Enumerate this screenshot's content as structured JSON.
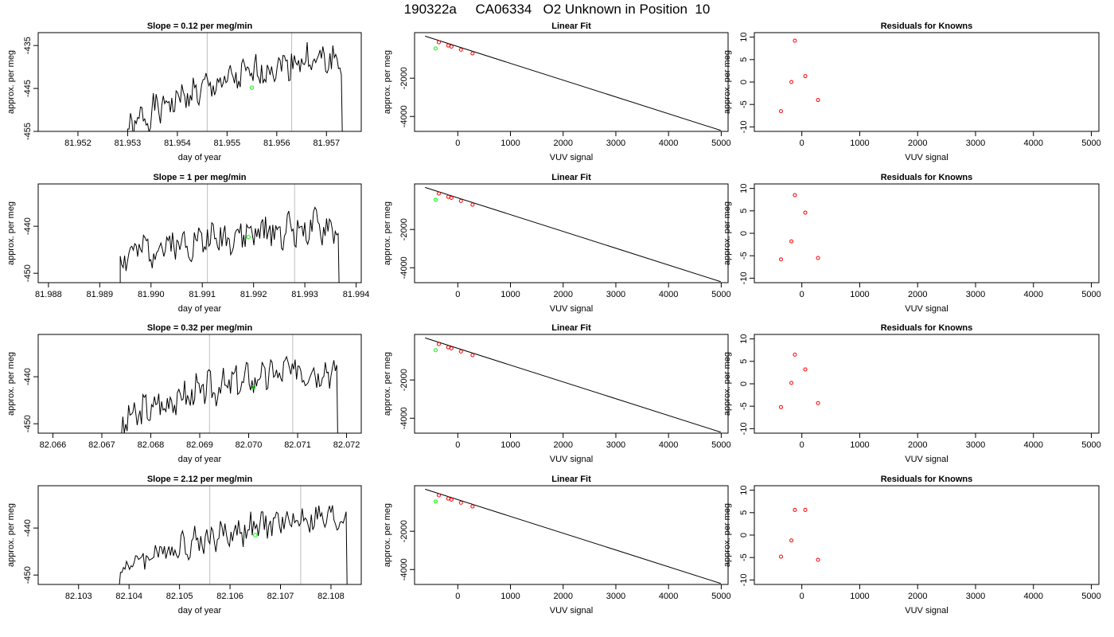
{
  "title": "190322a     CA06334   O2 Unknown in Position  10",
  "chart_data": [
    {
      "type": "line",
      "panel": "time",
      "title": "Slope =  0.12  per meg/min",
      "xlabel": "day of year",
      "ylabel": "approx. per meg",
      "xlim": [
        81.9512,
        81.9577
      ],
      "ylim": [
        -455,
        -432
      ],
      "xticks": [
        {
          "v": 81.952,
          "label": "81.952"
        },
        {
          "v": 81.953,
          "label": "81.953"
        },
        {
          "v": 81.954,
          "label": "81.954"
        },
        {
          "v": 81.955,
          "label": "81.955"
        },
        {
          "v": 81.956,
          "label": "81.956"
        },
        {
          "v": 81.957,
          "label": "81.957"
        }
      ],
      "yticks": [
        {
          "v": -435,
          "label": "-435"
        },
        {
          "v": -445,
          "label": "-445"
        },
        {
          "v": -455,
          "label": "-455"
        }
      ],
      "vlines": [
        81.9546,
        81.9563
      ],
      "highlight_point": {
        "x": 81.9555,
        "y": -444.8
      },
      "trace": {
        "x_start": 81.953,
        "x_end": 81.9573,
        "y_start": -456,
        "y_end": -438.5,
        "wiggle": 3,
        "seed": 1
      }
    },
    {
      "type": "scatter",
      "panel": "fit",
      "title": "Linear Fit",
      "xlabel": "VUV signal",
      "ylabel": "approx. per meg",
      "xlim": [
        -820,
        5130
      ],
      "ylim": [
        -4780,
        380
      ],
      "xticks": [
        {
          "v": 0,
          "label": "0"
        },
        {
          "v": 1000,
          "label": "1000"
        },
        {
          "v": 2000,
          "label": "2000"
        },
        {
          "v": 3000,
          "label": "3000"
        },
        {
          "v": 4000,
          "label": "4000"
        },
        {
          "v": 5000,
          "label": "5000"
        }
      ],
      "yticks": [
        {
          "v": -2000,
          "label": "-2000"
        },
        {
          "v": -4000,
          "label": "-4000"
        }
      ],
      "fit_line": {
        "x": [
          -620,
          4990
        ],
        "y": [
          197,
          -4727
        ]
      },
      "knowns": {
        "x": [
          -360,
          -180,
          -120,
          60,
          280
        ],
        "y": [
          -126,
          -293,
          -346,
          -509,
          -704
        ]
      },
      "unknown": {
        "x": -420,
        "y": -445
      }
    },
    {
      "type": "scatter",
      "panel": "resid",
      "title": "Residuals for Knowns",
      "xlabel": "VUV signal",
      "ylabel": "approx. per meg",
      "xlim": [
        -820,
        5130
      ],
      "ylim": [
        -11,
        11
      ],
      "xticks": [
        {
          "v": 0,
          "label": "0"
        },
        {
          "v": 1000,
          "label": "1000"
        },
        {
          "v": 2000,
          "label": "2000"
        },
        {
          "v": 3000,
          "label": "3000"
        },
        {
          "v": 4000,
          "label": "4000"
        },
        {
          "v": 5000,
          "label": "5000"
        }
      ],
      "yticks": [
        {
          "v": -10,
          "label": "-10"
        },
        {
          "v": -5,
          "label": "-5"
        },
        {
          "v": 0,
          "label": "0"
        },
        {
          "v": 5,
          "label": "5"
        },
        {
          "v": 10,
          "label": "10"
        }
      ],
      "points": {
        "x": [
          -360,
          -180,
          -120,
          60,
          280
        ],
        "y": [
          -6.5,
          0,
          9.2,
          1.3,
          -4
        ]
      }
    },
    {
      "type": "line",
      "panel": "time",
      "title": "Slope =  1  per meg/min",
      "xlabel": "day of year",
      "ylabel": "approx. per meg",
      "xlim": [
        81.9878,
        81.9941
      ],
      "ylim": [
        -452,
        -431
      ],
      "xticks": [
        {
          "v": 81.988,
          "label": "81.988"
        },
        {
          "v": 81.989,
          "label": "81.989"
        },
        {
          "v": 81.99,
          "label": "81.990"
        },
        {
          "v": 81.991,
          "label": "81.991"
        },
        {
          "v": 81.992,
          "label": "81.992"
        },
        {
          "v": 81.993,
          "label": "81.993"
        },
        {
          "v": 81.994,
          "label": "81.994"
        }
      ],
      "yticks": [
        {
          "v": -440,
          "label": "-440"
        },
        {
          "v": -450,
          "label": "-450"
        }
      ],
      "vlines": [
        81.9911,
        81.9928
      ],
      "highlight_point": {
        "x": 81.9919,
        "y": -442.3
      },
      "trace": {
        "x_start": 81.9894,
        "x_end": 81.99365,
        "y_start": -447,
        "y_end": -440.5,
        "wiggle": 3,
        "seed": 2
      }
    },
    {
      "type": "scatter",
      "panel": "fit",
      "title": "Linear Fit",
      "xlabel": "VUV signal",
      "ylabel": "approx. per meg",
      "xlim": [
        -820,
        5130
      ],
      "ylim": [
        -4780,
        380
      ],
      "xticks": [
        {
          "v": 0,
          "label": "0"
        },
        {
          "v": 1000,
          "label": "1000"
        },
        {
          "v": 2000,
          "label": "2000"
        },
        {
          "v": 3000,
          "label": "3000"
        },
        {
          "v": 4000,
          "label": "4000"
        },
        {
          "v": 5000,
          "label": "5000"
        }
      ],
      "yticks": [
        {
          "v": -2000,
          "label": "-2000"
        },
        {
          "v": -4000,
          "label": "-4000"
        }
      ],
      "fit_line": {
        "x": [
          -620,
          4990
        ],
        "y": [
          197,
          -4727
        ]
      },
      "knowns": {
        "x": [
          -360,
          -180,
          -120,
          60,
          280
        ],
        "y": [
          -126,
          -293,
          -346,
          -509,
          -704
        ]
      },
      "unknown": {
        "x": -420,
        "y": -445
      }
    },
    {
      "type": "scatter",
      "panel": "resid",
      "title": "Residuals for Knowns",
      "xlabel": "VUV signal",
      "ylabel": "approx. per meg",
      "xlim": [
        -820,
        5130
      ],
      "ylim": [
        -11,
        11
      ],
      "xticks": [
        {
          "v": 0,
          "label": "0"
        },
        {
          "v": 1000,
          "label": "1000"
        },
        {
          "v": 2000,
          "label": "2000"
        },
        {
          "v": 3000,
          "label": "3000"
        },
        {
          "v": 4000,
          "label": "4000"
        },
        {
          "v": 5000,
          "label": "5000"
        }
      ],
      "yticks": [
        {
          "v": -10,
          "label": "-10"
        },
        {
          "v": -5,
          "label": "-5"
        },
        {
          "v": 0,
          "label": "0"
        },
        {
          "v": 5,
          "label": "5"
        },
        {
          "v": 10,
          "label": "10"
        }
      ],
      "points": {
        "x": [
          -360,
          -180,
          -120,
          60,
          280
        ],
        "y": [
          -5.8,
          -1.8,
          8.5,
          4.6,
          -5.5
        ]
      }
    },
    {
      "type": "line",
      "panel": "time",
      "title": "Slope =  0.32  per meg/min",
      "xlabel": "day of year",
      "ylabel": "approx. per meg",
      "xlim": [
        82.0657,
        82.0723
      ],
      "ylim": [
        -452,
        -431
      ],
      "xticks": [
        {
          "v": 82.066,
          "label": "82.066"
        },
        {
          "v": 82.067,
          "label": "82.067"
        },
        {
          "v": 82.068,
          "label": "82.068"
        },
        {
          "v": 82.069,
          "label": "82.069"
        },
        {
          "v": 82.07,
          "label": "82.070"
        },
        {
          "v": 82.071,
          "label": "82.071"
        },
        {
          "v": 82.072,
          "label": "82.072"
        }
      ],
      "yticks": [
        {
          "v": -440,
          "label": "-440"
        },
        {
          "v": -450,
          "label": "-450"
        }
      ],
      "vlines": [
        82.0692,
        82.0709
      ],
      "highlight_point": {
        "x": 82.0701,
        "y": -442.2
      },
      "trace": {
        "x_start": 82.0674,
        "x_end": 82.0718,
        "y_start": -451,
        "y_end": -438.5,
        "wiggle": 3,
        "seed": 3
      }
    },
    {
      "type": "scatter",
      "panel": "fit",
      "title": "Linear Fit",
      "xlabel": "VUV signal",
      "ylabel": "approx. per meg",
      "xlim": [
        -820,
        5130
      ],
      "ylim": [
        -4780,
        380
      ],
      "xticks": [
        {
          "v": 0,
          "label": "0"
        },
        {
          "v": 1000,
          "label": "1000"
        },
        {
          "v": 2000,
          "label": "2000"
        },
        {
          "v": 3000,
          "label": "3000"
        },
        {
          "v": 4000,
          "label": "4000"
        },
        {
          "v": 5000,
          "label": "5000"
        }
      ],
      "yticks": [
        {
          "v": -2000,
          "label": "-2000"
        },
        {
          "v": -4000,
          "label": "-4000"
        }
      ],
      "fit_line": {
        "x": [
          -620,
          4990
        ],
        "y": [
          197,
          -4727
        ]
      },
      "knowns": {
        "x": [
          -360,
          -180,
          -120,
          60,
          280
        ],
        "y": [
          -126,
          -293,
          -346,
          -509,
          -704
        ]
      },
      "unknown": {
        "x": -420,
        "y": -445
      }
    },
    {
      "type": "scatter",
      "panel": "resid",
      "title": "Residuals for Knowns",
      "xlabel": "VUV signal",
      "ylabel": "approx. per meg",
      "xlim": [
        -820,
        5130
      ],
      "ylim": [
        -11,
        11
      ],
      "xticks": [
        {
          "v": 0,
          "label": "0"
        },
        {
          "v": 1000,
          "label": "1000"
        },
        {
          "v": 2000,
          "label": "2000"
        },
        {
          "v": 3000,
          "label": "3000"
        },
        {
          "v": 4000,
          "label": "4000"
        },
        {
          "v": 5000,
          "label": "5000"
        }
      ],
      "yticks": [
        {
          "v": -10,
          "label": "-10"
        },
        {
          "v": -5,
          "label": "-5"
        },
        {
          "v": 0,
          "label": "0"
        },
        {
          "v": 5,
          "label": "5"
        },
        {
          "v": 10,
          "label": "10"
        }
      ],
      "points": {
        "x": [
          -360,
          -180,
          -120,
          60,
          280
        ],
        "y": [
          -5.2,
          0.2,
          6.5,
          3.2,
          -4.3
        ]
      }
    },
    {
      "type": "line",
      "panel": "time",
      "title": "Slope =  2.12  per meg/min",
      "xlabel": "day of year",
      "ylabel": "approx. per meg",
      "xlim": [
        82.1022,
        82.1086
      ],
      "ylim": [
        -452,
        -431
      ],
      "xticks": [
        {
          "v": 82.103,
          "label": "82.103"
        },
        {
          "v": 82.104,
          "label": "82.104"
        },
        {
          "v": 82.105,
          "label": "82.105"
        },
        {
          "v": 82.106,
          "label": "82.106"
        },
        {
          "v": 82.107,
          "label": "82.107"
        },
        {
          "v": 82.108,
          "label": "82.108"
        }
      ],
      "yticks": [
        {
          "v": -440,
          "label": "-440"
        },
        {
          "v": -450,
          "label": "-450"
        }
      ],
      "vlines": [
        82.1056,
        82.1074
      ],
      "highlight_point": {
        "x": 82.1065,
        "y": -441.5
      },
      "trace": {
        "x_start": 82.1038,
        "x_end": 82.1083,
        "y_start": -450,
        "y_end": -438,
        "wiggle": 2.5,
        "seed": 4
      }
    },
    {
      "type": "scatter",
      "panel": "fit",
      "title": "Linear Fit",
      "xlabel": "VUV signal",
      "ylabel": "approx. per meg",
      "xlim": [
        -820,
        5130
      ],
      "ylim": [
        -4780,
        380
      ],
      "xticks": [
        {
          "v": 0,
          "label": "0"
        },
        {
          "v": 1000,
          "label": "1000"
        },
        {
          "v": 2000,
          "label": "2000"
        },
        {
          "v": 3000,
          "label": "3000"
        },
        {
          "v": 4000,
          "label": "4000"
        },
        {
          "v": 5000,
          "label": "5000"
        }
      ],
      "yticks": [
        {
          "v": -2000,
          "label": "-2000"
        },
        {
          "v": -4000,
          "label": "-4000"
        }
      ],
      "fit_line": {
        "x": [
          -620,
          4990
        ],
        "y": [
          197,
          -4727
        ]
      },
      "knowns": {
        "x": [
          -360,
          -180,
          -120,
          60,
          280
        ],
        "y": [
          -126,
          -293,
          -346,
          -509,
          -704
        ]
      },
      "unknown": {
        "x": -420,
        "y": -445
      }
    },
    {
      "type": "scatter",
      "panel": "resid",
      "title": "Residuals for Knowns",
      "xlabel": "VUV signal",
      "ylabel": "approx. per meg",
      "xlim": [
        -820,
        5130
      ],
      "ylim": [
        -11,
        11
      ],
      "xticks": [
        {
          "v": 0,
          "label": "0"
        },
        {
          "v": 1000,
          "label": "1000"
        },
        {
          "v": 2000,
          "label": "2000"
        },
        {
          "v": 3000,
          "label": "3000"
        },
        {
          "v": 4000,
          "label": "4000"
        },
        {
          "v": 5000,
          "label": "5000"
        }
      ],
      "yticks": [
        {
          "v": -10,
          "label": "-10"
        },
        {
          "v": -5,
          "label": "-5"
        },
        {
          "v": 0,
          "label": "0"
        },
        {
          "v": 5,
          "label": "5"
        },
        {
          "v": 10,
          "label": "10"
        }
      ],
      "points": {
        "x": [
          -360,
          -180,
          -120,
          60,
          280
        ],
        "y": [
          -4.8,
          -1.2,
          5.6,
          5.6,
          -5.5
        ]
      }
    }
  ],
  "colors": {
    "line": "#000000",
    "vline": "#bebebe",
    "unknown_point": "#00ff00",
    "resid_point": "#ff0000",
    "fit_point": "#ff0000"
  }
}
